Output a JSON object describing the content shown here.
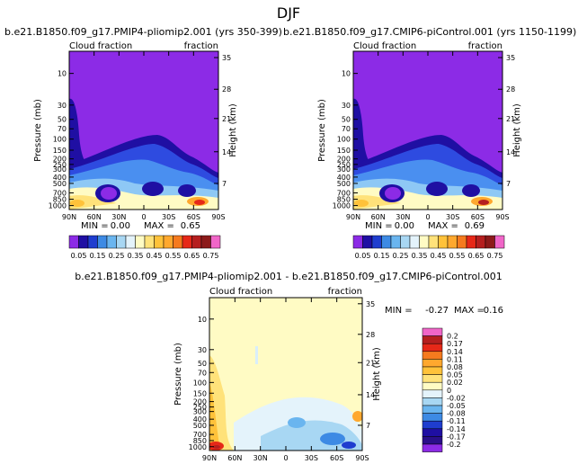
{
  "page": {
    "title": "DJF"
  },
  "colors": {
    "purple": "#8c2be6",
    "labels": "#000000"
  },
  "chart_data": [
    {
      "type": "heatmap",
      "title": "b.e21.B1850.f09_g17.PMIP4-pliomip2.001 (yrs 350-399)",
      "left_label": "Cloud fraction",
      "right_label": "fraction",
      "xlabel": "",
      "ylabel": "Pressure (mb)",
      "ylabel_right": "Height (km)",
      "x_ticks": [
        "90N",
        "60N",
        "30N",
        "0",
        "30S",
        "60S",
        "90S"
      ],
      "y_ticks": [
        "10",
        "30",
        "50",
        "70",
        "100",
        "150",
        "200",
        "250",
        "300",
        "400",
        "500",
        "700",
        "850",
        "1000"
      ],
      "y_right_ticks": [
        "35",
        "28",
        "21",
        "14",
        "7"
      ],
      "min": 0.0,
      "max": 0.65,
      "min_label": "MIN =",
      "max_label": "MAX =",
      "colorbar_labels": [
        "0.05",
        "0.15",
        "0.25",
        "0.35",
        "0.45",
        "0.55",
        "0.65",
        "0.75"
      ]
    },
    {
      "type": "heatmap",
      "title": "b.e21.B1850.f09_g17.CMIP6-piControl.001 (yrs 1150-1199)",
      "left_label": "Cloud fraction",
      "right_label": "fraction",
      "xlabel": "",
      "ylabel": "Pressure (mb)",
      "ylabel_right": "Height (km)",
      "x_ticks": [
        "90N",
        "60N",
        "30N",
        "0",
        "30S",
        "60S",
        "90S"
      ],
      "y_ticks": [
        "10",
        "30",
        "50",
        "70",
        "100",
        "150",
        "200",
        "250",
        "300",
        "400",
        "500",
        "700",
        "850",
        "1000"
      ],
      "y_right_ticks": [
        "35",
        "28",
        "21",
        "14",
        "7"
      ],
      "min": 0.0,
      "max": 0.69,
      "min_label": "MIN =",
      "max_label": "MAX =",
      "colorbar_labels": [
        "0.05",
        "0.15",
        "0.25",
        "0.35",
        "0.45",
        "0.55",
        "0.65",
        "0.75"
      ]
    },
    {
      "type": "heatmap",
      "title": "b.e21.B1850.f09_g17.PMIP4-pliomip2.001 - b.e21.B1850.f09_g17.CMIP6-piControl.001",
      "left_label": "Cloud fraction",
      "right_label": "fraction",
      "xlabel": "",
      "ylabel": "Pressure (mb)",
      "ylabel_right": "Height (km)",
      "x_ticks": [
        "90N",
        "60N",
        "30N",
        "0",
        "30S",
        "60S",
        "90S"
      ],
      "y_ticks": [
        "10",
        "30",
        "50",
        "70",
        "100",
        "150",
        "200",
        "250",
        "300",
        "400",
        "500",
        "700",
        "850",
        "1000"
      ],
      "y_right_ticks": [
        "35",
        "28",
        "21",
        "14",
        "7"
      ],
      "min": -0.27,
      "max": 0.16,
      "min_label": "MIN =",
      "max_label": "MAX =",
      "colorbar_labels": [
        "0.2",
        "0.17",
        "0.14",
        "0.11",
        "0.08",
        "0.05",
        "0.02",
        "0",
        "-0.02",
        "-0.05",
        "-0.08",
        "-0.11",
        "-0.14",
        "-0.17",
        "-0.2"
      ]
    }
  ]
}
